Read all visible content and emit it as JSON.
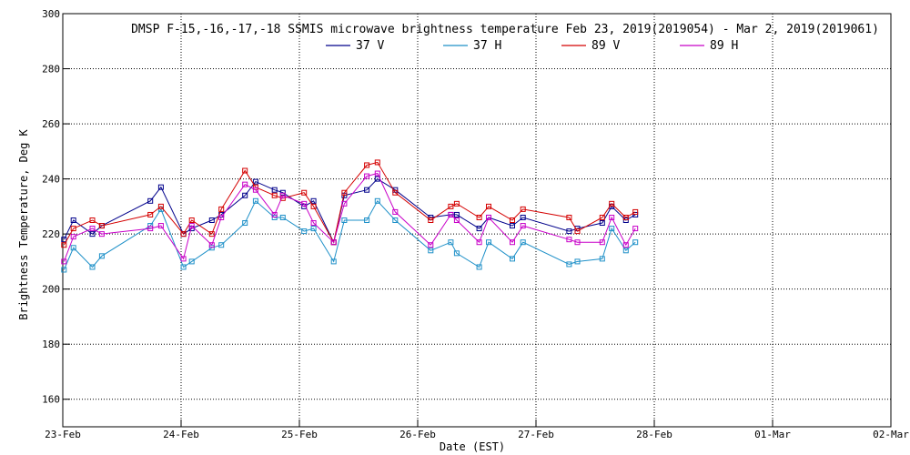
{
  "chart_data": {
    "type": "line",
    "title": "DMSP F-15,-16,-17,-18 SSMIS microwave brightness temperature Feb 23, 2019(2019054) - Mar  2, 2019(2019061)",
    "xlabel": "Date (EST)",
    "ylabel": "Brightness Temperature, Deg K",
    "ylim": [
      150,
      300
    ],
    "yticks": [
      160,
      180,
      200,
      220,
      240,
      260,
      280,
      300
    ],
    "xlim": [
      0,
      7
    ],
    "xticks": [
      0,
      1,
      2,
      3,
      4,
      5,
      6,
      7
    ],
    "xtick_labels": [
      "23-Feb",
      "24-Feb",
      "25-Feb",
      "26-Feb",
      "27-Feb",
      "28-Feb",
      "01-Mar",
      "02-Mar"
    ],
    "grid": true,
    "legend_position": "top-center",
    "x": [
      0.01,
      0.09,
      0.25,
      0.33,
      0.74,
      0.83,
      1.02,
      1.09,
      1.26,
      1.34,
      1.54,
      1.63,
      1.79,
      1.86,
      2.04,
      2.12,
      2.29,
      2.38,
      2.57,
      2.66,
      2.81,
      3.11,
      3.28,
      3.33,
      3.52,
      3.6,
      3.8,
      3.89,
      4.28,
      4.35,
      4.56,
      4.64,
      4.76,
      4.84
    ],
    "series": [
      {
        "name": "37 V",
        "color": "#00008b",
        "values": [
          218,
          225,
          220,
          223,
          232,
          237,
          220,
          222,
          225,
          227,
          234,
          239,
          236,
          235,
          230,
          232,
          217,
          234,
          236,
          240,
          236,
          226,
          227,
          227,
          222,
          226,
          223,
          226,
          221,
          222,
          224,
          230,
          225,
          227
        ]
      },
      {
        "name": "37 H",
        "color": "#1e90c8",
        "values": [
          207,
          215,
          208,
          212,
          223,
          229,
          208,
          210,
          215,
          216,
          224,
          232,
          226,
          226,
          221,
          222,
          210,
          225,
          225,
          232,
          225,
          214,
          217,
          213,
          208,
          217,
          211,
          217,
          209,
          210,
          211,
          222,
          214,
          217
        ]
      },
      {
        "name": "89 V",
        "color": "#d40000",
        "values": [
          216,
          222,
          225,
          223,
          227,
          230,
          220,
          225,
          220,
          229,
          243,
          237,
          234,
          233,
          235,
          230,
          217,
          235,
          245,
          246,
          235,
          225,
          230,
          231,
          226,
          230,
          225,
          229,
          226,
          221,
          226,
          231,
          226,
          228
        ]
      },
      {
        "name": "89 H",
        "color": "#c800c8",
        "values": [
          210,
          219,
          222,
          220,
          222,
          223,
          211,
          223,
          216,
          226,
          238,
          236,
          227,
          234,
          231,
          224,
          217,
          231,
          241,
          242,
          228,
          216,
          227,
          225,
          217,
          226,
          217,
          223,
          218,
          217,
          217,
          226,
          216,
          222
        ]
      }
    ]
  }
}
